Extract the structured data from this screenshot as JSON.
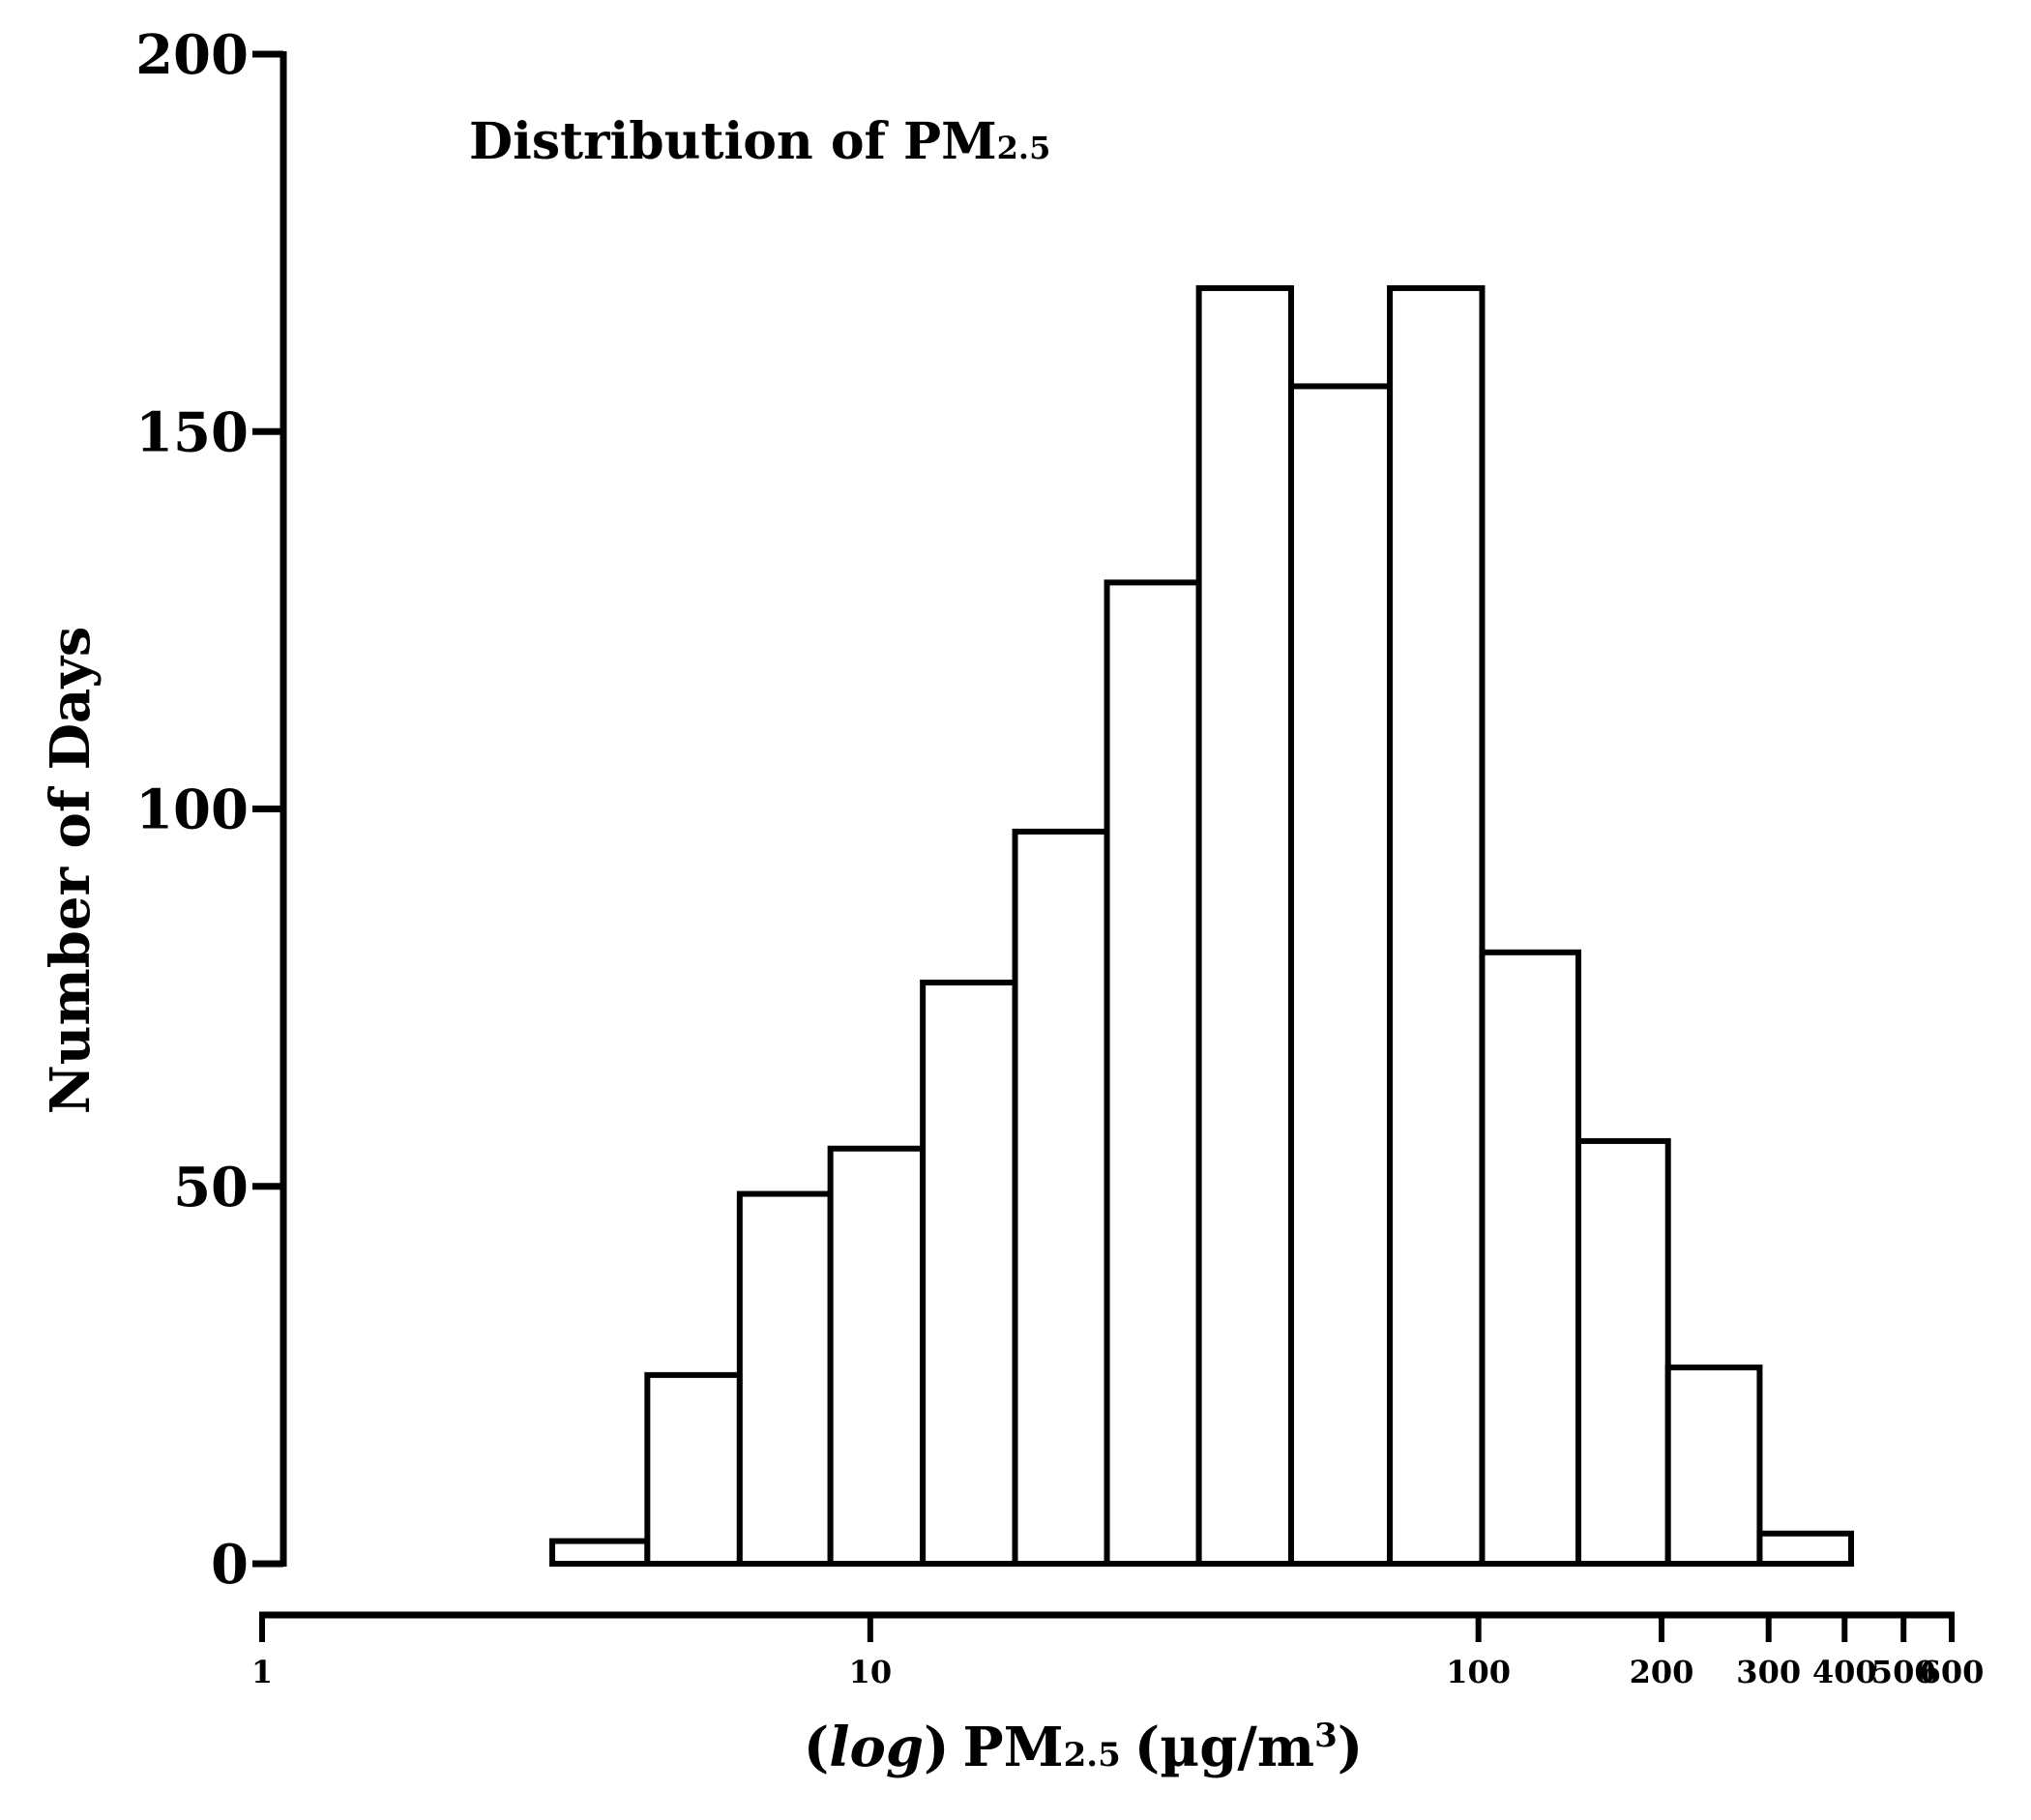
{
  "chart_data": {
    "type": "bar",
    "title_main": "Distribution of PM",
    "title_sub": "2.5",
    "xlabel_parts": {
      "open": "(",
      "log": "log",
      "close": ")",
      "pm": "PM",
      "sub": "2.5",
      "unit_open": "(µg/m",
      "sup": "3",
      "unit_close": ")"
    },
    "ylabel": "Number of Days",
    "x_scale": "log",
    "xlim": [
      1,
      600
    ],
    "ylim": [
      0,
      200
    ],
    "y_ticks": [
      0,
      50,
      100,
      150,
      200
    ],
    "y_tick_labels": [
      "0",
      "50",
      "100",
      "150",
      "200"
    ],
    "x_ticks": [
      1,
      10,
      100,
      200,
      300,
      400,
      500,
      600
    ],
    "x_tick_labels": [
      "1",
      "10",
      "100",
      "200",
      "300",
      "400",
      "500",
      "600"
    ],
    "bins": [
      {
        "x0": 3.0,
        "x1": 4.3,
        "value": 3
      },
      {
        "x0": 4.3,
        "x1": 6.1,
        "value": 25
      },
      {
        "x0": 6.1,
        "x1": 8.6,
        "value": 49
      },
      {
        "x0": 8.6,
        "x1": 12.2,
        "value": 55
      },
      {
        "x0": 12.2,
        "x1": 17.3,
        "value": 77
      },
      {
        "x0": 17.3,
        "x1": 24.5,
        "value": 97
      },
      {
        "x0": 24.5,
        "x1": 34.7,
        "value": 130
      },
      {
        "x0": 34.7,
        "x1": 49.2,
        "value": 169
      },
      {
        "x0": 49.2,
        "x1": 71.5,
        "value": 156
      },
      {
        "x0": 71.5,
        "x1": 101.4,
        "value": 169
      },
      {
        "x0": 101.4,
        "x1": 146.0,
        "value": 81
      },
      {
        "x0": 146.0,
        "x1": 205.0,
        "value": 56
      },
      {
        "x0": 205.0,
        "x1": 290.0,
        "value": 26
      },
      {
        "x0": 290.0,
        "x1": 410.0,
        "value": 4
      }
    ],
    "grid": false,
    "legend": "none",
    "bar_fill": "#ffffff",
    "bar_stroke": "#000000"
  }
}
